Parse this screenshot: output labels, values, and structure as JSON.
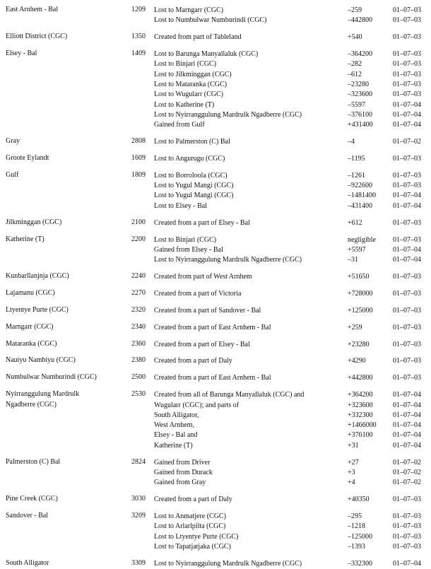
{
  "entries": [
    {
      "name": [
        "East Arnhem - Bal"
      ],
      "code": "1209",
      "changes": [
        {
          "desc": "Lost to Marngarr (CGC)",
          "change": "–259",
          "date": "01–07–03"
        },
        {
          "desc": "Lost to Numbulwar Numburindi (CGC)",
          "change": "–442800",
          "date": "01–07–03"
        }
      ]
    },
    {
      "name": [
        "Elliott District (CGC)"
      ],
      "code": "1350",
      "changes": [
        {
          "desc": "Created from part of Tableland",
          "change": "+540",
          "date": "01–07–03"
        }
      ]
    },
    {
      "name": [
        "Elsey - Bal"
      ],
      "code": "1409",
      "changes": [
        {
          "desc": "Lost to Barunga Manyallaluk (CGC)",
          "change": "–364200",
          "date": "01–07–03"
        },
        {
          "desc": "Lost to Binjari (CGC)",
          "change": "–282",
          "date": "01–07–03"
        },
        {
          "desc": "Lost to Jilkminggan (CGC)",
          "change": "–612",
          "date": "01–07–03"
        },
        {
          "desc": "Lost to Mataranka (CGC)",
          "change": "–23280",
          "date": "01–07–03"
        },
        {
          "desc": "Lost to Wugularr (CGC)",
          "change": "–323600",
          "date": "01–07–03"
        },
        {
          "desc": "Lost to Katherine (T)",
          "change": "–5597",
          "date": "01–07–04"
        },
        {
          "desc": "Lost to Nyirranggulung Mardrulk Ngadberre (CGC)",
          "change": "–376100",
          "date": "01–07–04"
        },
        {
          "desc": "Gained from Gulf",
          "change": "+431400",
          "date": "01–07–04"
        }
      ]
    },
    {
      "name": [
        "Gray"
      ],
      "code": "2808",
      "changes": [
        {
          "desc": "Lost to Palmerston (C) Bal",
          "change": "–4",
          "date": "01–07–02"
        }
      ]
    },
    {
      "name": [
        "Groote Eylandt"
      ],
      "code": "1609",
      "changes": [
        {
          "desc": "Lost to Angurugu (CGC)",
          "change": "–1195",
          "date": "01–07–03"
        }
      ]
    },
    {
      "name": [
        "Gulf"
      ],
      "code": "1809",
      "changes": [
        {
          "desc": "Lost to Borroloola (CGC)",
          "change": "–1261",
          "date": "01–07–03"
        },
        {
          "desc": "Lost to Yugul Mangi (CGC)",
          "change": "–922600",
          "date": "01–07–03"
        },
        {
          "desc": "Lost to Yugul Mangi (CGC)",
          "change": "–1481400",
          "date": "01–07–04"
        },
        {
          "desc": "Lost to Elsey - Bal",
          "change": "–431400",
          "date": "01–07–04"
        }
      ]
    },
    {
      "name": [
        "Jilkminggan (CGC)"
      ],
      "code": "2100",
      "changes": [
        {
          "desc": "Created from a part of Elsey - Bal",
          "change": "+612",
          "date": "01–07–03"
        }
      ]
    },
    {
      "name": [
        "Katherine (T)"
      ],
      "code": "2200",
      "changes": [
        {
          "desc": "Lost to Binjari (CGC)",
          "change": "negligible",
          "date": "01–07–03"
        },
        {
          "desc": "Gained from Elsey - Bal",
          "change": "+5597",
          "date": "01–07–04"
        },
        {
          "desc": "Lost to Nyirranggulung Mardrulk Ngadberre (CGC)",
          "change": "–31",
          "date": "01–07–04"
        }
      ]
    },
    {
      "name": [
        "Kunbarllanjnja (CGC)"
      ],
      "code": "2240",
      "changes": [
        {
          "desc": "Created from part of West Arnhem",
          "change": "+51650",
          "date": "01–07–03"
        }
      ]
    },
    {
      "name": [
        "Lajamanu (CGC)"
      ],
      "code": "2270",
      "changes": [
        {
          "desc": "Created from a part of Victoria",
          "change": "+728000",
          "date": "01–07–03"
        }
      ]
    },
    {
      "name": [
        "Ltyentye Purte (CGC)"
      ],
      "code": "2320",
      "changes": [
        {
          "desc": "Created from a part of Sandover - Bal",
          "change": "+125000",
          "date": "01–07–03"
        }
      ]
    },
    {
      "name": [
        "Marngarr (CGC)"
      ],
      "code": "2340",
      "changes": [
        {
          "desc": "Created from a part of East Arnhem - Bal",
          "change": "+259",
          "date": "01–07–03"
        }
      ]
    },
    {
      "name": [
        "Mataranka (CGC)"
      ],
      "code": "2360",
      "changes": [
        {
          "desc": "Created from a part of Elsey - Bal",
          "change": "+23280",
          "date": "01–07–03"
        }
      ]
    },
    {
      "name": [
        "Nauiyu Nambiyu (CGC)"
      ],
      "code": "2380",
      "changes": [
        {
          "desc": "Created from a part of Daly",
          "change": "+4290",
          "date": "01–07–03"
        }
      ]
    },
    {
      "name": [
        "Numbulwar Numburindi (CGC)"
      ],
      "code": "2500",
      "changes": [
        {
          "desc": "Created from a part of East Arnhem - Bal",
          "change": "+442800",
          "date": "01–07–03"
        }
      ]
    },
    {
      "name": [
        "Nyirranggulung Mardrulk",
        "Ngadberre (CGC)"
      ],
      "code": "2530",
      "changes": [
        {
          "desc": "Created from all of Barunga Manyallaluk (CGC) and",
          "change": "+364200",
          "date": "01–07–04"
        },
        {
          "desc": "Wugularr (CGC); and parts of",
          "change": "+323600",
          "date": "01–07–04"
        },
        {
          "desc": "South Alligator,",
          "change": "+332300",
          "date": "01–07–04"
        },
        {
          "desc": "West Arnhem,",
          "change": "+1466000",
          "date": "01–07–04"
        },
        {
          "desc": "Elsey - Bal  and",
          "change": "+376100",
          "date": "01–07–04"
        },
        {
          "desc": "Katherine (T)",
          "change": "+31",
          "date": "01–07–04"
        }
      ]
    },
    {
      "name": [
        "Palmerston (C) Bal"
      ],
      "code": "2824",
      "changes": [
        {
          "desc": "Gained from Driver",
          "change": "+27",
          "date": "01–07–02"
        },
        {
          "desc": "Gained from Durack",
          "change": "+3",
          "date": "01–07–02"
        },
        {
          "desc": "Gained from Gray",
          "change": "+4",
          "date": "01–07–02"
        }
      ]
    },
    {
      "name": [
        "Pine Creek (CGC)"
      ],
      "code": "3030",
      "changes": [
        {
          "desc": "Created from a part of Daly",
          "change": "+40350",
          "date": "01–07–03"
        }
      ]
    },
    {
      "name": [
        "Sandover - Bal"
      ],
      "code": "3209",
      "changes": [
        {
          "desc": "Lost to Anmatjere (CGC)",
          "change": "–295",
          "date": "01–07–03"
        },
        {
          "desc": "Lost to Arlarlpilta (CGC)",
          "change": "–1218",
          "date": "01–07–03"
        },
        {
          "desc": "Lost to Ltyentye Purte (CGC)",
          "change": "–125000",
          "date": "01–07–03"
        },
        {
          "desc": "Lost to Tapatjatjaka (CGC)",
          "change": "–1393",
          "date": "01–07–03"
        }
      ]
    },
    {
      "name": [
        "South Alligator"
      ],
      "code": "3309",
      "changes": [
        {
          "desc": "Lost to Nyirranggulung Mardrulk Ngadberre (CGC)",
          "change": "–332300",
          "date": "01–07–04"
        }
      ]
    }
  ]
}
